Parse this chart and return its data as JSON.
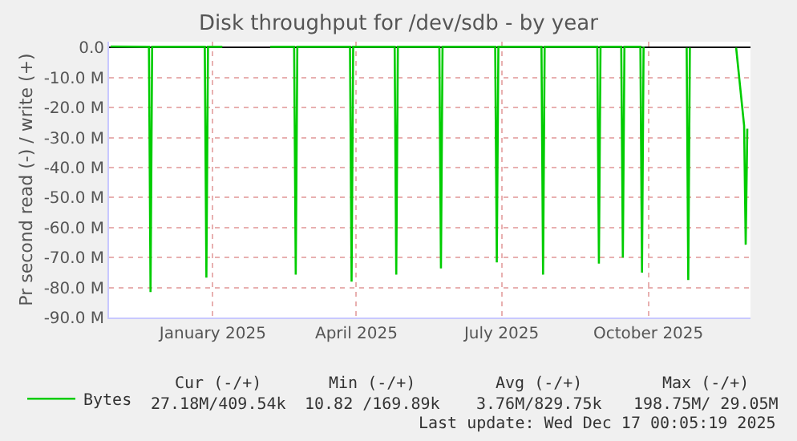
{
  "chart_data": {
    "type": "line",
    "title": "Disk throughput for /dev/sdb - by year",
    "ylabel": "Pr second read (-) / write (+)",
    "x": [
      "2024-11-13",
      "2024-12-07",
      "2024-12-08",
      "2024-12-09",
      "2025-01-11",
      "2025-01-12",
      "2025-01-13",
      "2025-01-22",
      "2025-02-05",
      "2025-02-21",
      "2025-03-08",
      "2025-03-09",
      "2025-03-10",
      "2025-04-12",
      "2025-04-13",
      "2025-04-14",
      "2025-05-10",
      "2025-05-11",
      "2025-05-12",
      "2025-06-07",
      "2025-06-08",
      "2025-06-09",
      "2025-07-12",
      "2025-07-13",
      "2025-07-14",
      "2025-08-10",
      "2025-08-11",
      "2025-08-12",
      "2025-09-14",
      "2025-09-15",
      "2025-09-16",
      "2025-09-29",
      "2025-09-30",
      "2025-10-01",
      "2025-10-11",
      "2025-10-12",
      "2025-10-13",
      "2025-10-25",
      "2025-11-09",
      "2025-11-10",
      "2025-11-11",
      "2025-11-25",
      "2025-12-10",
      "2025-12-15",
      "2025-12-16",
      "2025-12-17"
    ],
    "series": [
      {
        "name": "Bytes",
        "color": "#00cc00",
        "values": [
          0.4,
          0.3,
          -81.5,
          0.3,
          0.3,
          -76.7,
          0.3,
          0.3,
          null,
          0.3,
          0.3,
          -75.7,
          0.3,
          0.3,
          -78,
          0.3,
          0.3,
          -75.7,
          0.3,
          0.3,
          -73.6,
          0.3,
          0.3,
          -71.6,
          0.3,
          0.3,
          -75.7,
          0.3,
          0.3,
          -72,
          0.3,
          0.3,
          -70,
          0.3,
          0.3,
          -75,
          0.3,
          null,
          0,
          -77.5,
          0,
          null,
          0,
          -26,
          -65.7,
          -27
        ]
      }
    ],
    "xlim": [
      "2024-11-12",
      "2025-12-19"
    ],
    "xticks": [
      {
        "value": "2025-01-16",
        "label": "January 2025"
      },
      {
        "value": "2025-04-16",
        "label": "April 2025"
      },
      {
        "value": "2025-07-16",
        "label": "July 2025"
      },
      {
        "value": "2025-10-16",
        "label": "October 2025"
      }
    ],
    "ylim": [
      -90,
      2
    ],
    "yticks": [
      {
        "value": 0,
        "label": "0.0"
      },
      {
        "value": -10,
        "label": "-10.0 M"
      },
      {
        "value": -20,
        "label": "-20.0 M"
      },
      {
        "value": -30,
        "label": "-30.0 M"
      },
      {
        "value": -40,
        "label": "-40.0 M"
      },
      {
        "value": -50,
        "label": "-50.0 M"
      },
      {
        "value": -60,
        "label": "-60.0 M"
      },
      {
        "value": -70,
        "label": "-70.0 M"
      },
      {
        "value": -80,
        "label": "-80.0 M"
      },
      {
        "value": -90,
        "label": "-90.0 M"
      }
    ],
    "grid": true,
    "legend": "bottom left",
    "marker": "none",
    "line_style": "solid",
    "annotations": [
      "Cur (-/+)",
      "Min (-/+)",
      "Avg (-/+)",
      "Max (-/+)",
      "27.18M/409.54k",
      "10.82 /169.89k",
      "3.76M/829.75k",
      "198.75M/ 29.05M",
      "Last update: Wed Dec 17 00:05:19 2025"
    ]
  }
}
